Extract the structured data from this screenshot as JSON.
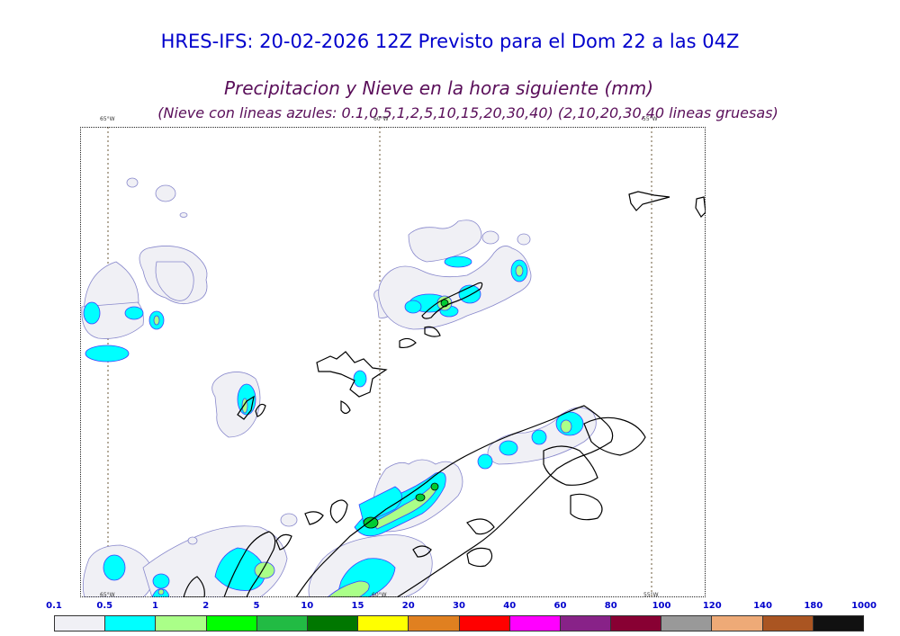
{
  "header": {
    "title": "HRES-IFS: 20-02-2026 12Z Previsto para el Dom 22 a las 04Z",
    "subtitle": "Precipitacion y Nieve en la hora siguiente (mm)",
    "subtitle2": "(Nieve con lineas azules: 0.1,0.5,1,2,5,10,15,20,30,40)  (2,10,20,30,40 lineas gruesas)"
  },
  "map": {
    "meridian_labels": [
      "65°W",
      "60°W",
      "55°W"
    ],
    "colors": {
      "land_outline": "#000000",
      "snow_line": "#4040ff",
      "frame": "#222222"
    }
  },
  "legend": {
    "labels": [
      "0.1",
      "0.5",
      "1",
      "2",
      "5",
      "10",
      "15",
      "20",
      "30",
      "40",
      "60",
      "80",
      "100",
      "120",
      "140",
      "180",
      "1000"
    ],
    "colors": [
      "#f0f0f5",
      "#00ffff",
      "#aaff88",
      "#00ff00",
      "#22bb44",
      "#007700",
      "#ffff00",
      "#e08020",
      "#ff0000",
      "#ff00ff",
      "#882288",
      "#880033",
      "#999999",
      "#eeaa77",
      "#aa5522",
      "#111111"
    ]
  }
}
